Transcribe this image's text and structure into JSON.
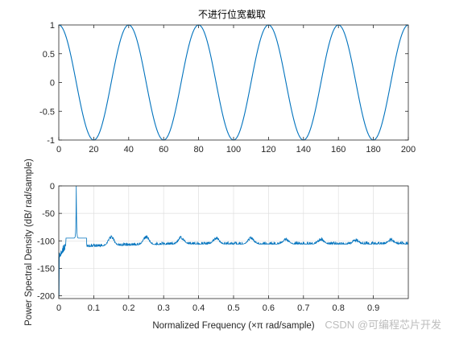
{
  "colors": {
    "series": "#0072bd",
    "axis": "#262626",
    "grid": "#dfdfdf"
  },
  "watermark": "CSDN @可编程芯片开发",
  "chart_data": [
    {
      "type": "line",
      "title": "不进行位宽截取",
      "xlabel": "",
      "ylabel": "",
      "xlim": [
        0,
        200
      ],
      "ylim": [
        -1,
        1
      ],
      "xticks": [
        "0",
        "20",
        "40",
        "60",
        "80",
        "100",
        "120",
        "140",
        "160",
        "180",
        "200"
      ],
      "yticks": [
        "1",
        "0.5",
        "0",
        "-0.5",
        "-1"
      ],
      "grid": false,
      "series": [
        {
          "function": "cos(2*pi*(x-40)/40)",
          "period": 40,
          "peaks_x": [
            0,
            40,
            80,
            120,
            160,
            200
          ],
          "troughs_x": [
            20,
            60,
            100,
            140,
            180
          ],
          "amplitude": 1
        }
      ]
    },
    {
      "type": "line",
      "title": "",
      "xlabel": "Normalized Frequency  (×π rad/sample)",
      "ylabel": "Power Spectral Density (dB/ rad/sample)",
      "xlim": [
        0,
        1
      ],
      "ylim": [
        -205,
        0
      ],
      "xticks": [
        "0",
        "0.1",
        "0.2",
        "0.3",
        "0.4",
        "0.5",
        "0.6",
        "0.7",
        "0.8",
        "0.9"
      ],
      "yticks": [
        "0",
        "-50",
        "-100",
        "-150",
        "-200"
      ],
      "grid": true,
      "series": [
        {
          "main_peak": {
            "x": 0.05,
            "y": 0
          },
          "noise_floor": {
            "start": -115,
            "end": -106
          },
          "spurs": [
            {
              "x": 0.15,
              "y": -93
            },
            {
              "x": 0.25,
              "y": -93
            },
            {
              "x": 0.35,
              "y": -94
            },
            {
              "x": 0.45,
              "y": -95
            },
            {
              "x": 0.55,
              "y": -95
            },
            {
              "x": 0.65,
              "y": -97
            },
            {
              "x": 0.75,
              "y": -97
            },
            {
              "x": 0.85,
              "y": -98
            },
            {
              "x": 0.95,
              "y": -98
            }
          ],
          "low_freq_dip": {
            "x": 0.002,
            "y": -200
          }
        }
      ]
    }
  ]
}
